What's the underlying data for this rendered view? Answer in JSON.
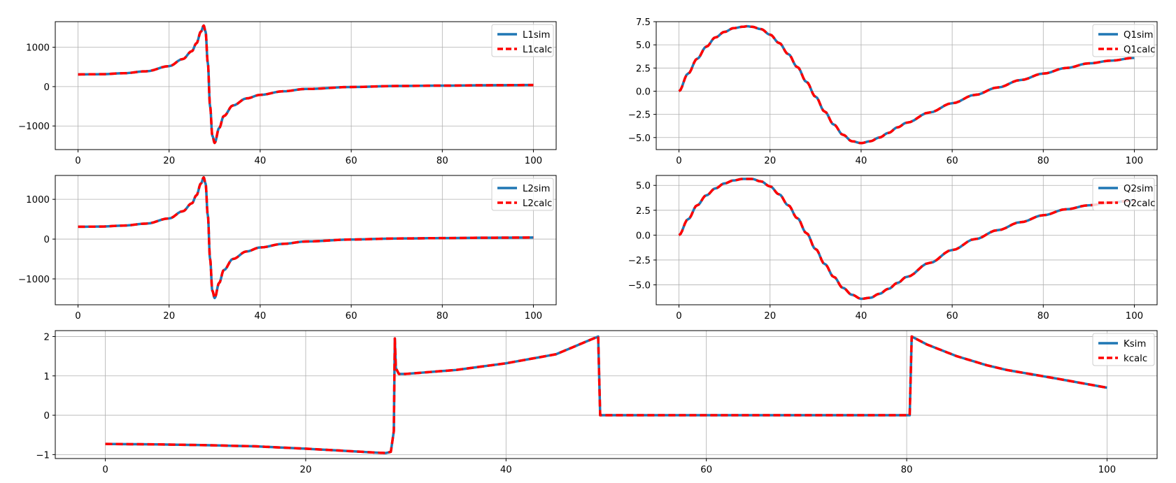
{
  "colors": {
    "sim": "#1f77b4",
    "calc": "#ff0000",
    "grid": "#b0b0b0",
    "axes": "#000000"
  },
  "chart_data": [
    {
      "id": "L1",
      "type": "line",
      "xlim": [
        -5,
        105
      ],
      "ylim": [
        -1600,
        1650
      ],
      "xticks": [
        0,
        20,
        40,
        60,
        80,
        100
      ],
      "yticks": [
        -1000,
        0,
        1000
      ],
      "grid": true,
      "legend_position": "top-right",
      "generator": "lorentz",
      "series": [
        {
          "name": "L1sim",
          "style": "solid"
        },
        {
          "name": "L1calc",
          "style": "dashed"
        }
      ],
      "x": [
        0,
        5,
        10,
        15,
        20,
        23,
        25,
        26,
        27,
        27.6,
        28,
        28.5,
        29,
        29.5,
        30,
        31,
        32,
        34,
        37,
        40,
        45,
        50,
        60,
        70,
        80,
        90,
        100
      ],
      "y": [
        310,
        315,
        340,
        390,
        520,
        700,
        900,
        1100,
        1400,
        1550,
        1400,
        600,
        -500,
        -1250,
        -1430,
        -1050,
        -750,
        -480,
        -300,
        -210,
        -120,
        -60,
        -10,
        15,
        25,
        35,
        40
      ]
    },
    {
      "id": "Q1",
      "type": "line",
      "xlim": [
        -5,
        105
      ],
      "ylim": [
        -6.3,
        7.5
      ],
      "xticks": [
        0,
        20,
        40,
        60,
        80,
        100
      ],
      "yticks": [
        -5.0,
        -2.5,
        0.0,
        2.5,
        5.0,
        7.5
      ],
      "ytick_format": 1,
      "grid": true,
      "legend_position": "top-right",
      "series": [
        {
          "name": "Q1sim",
          "style": "solid"
        },
        {
          "name": "Q1calc",
          "style": "dashed"
        }
      ],
      "x": [
        0,
        2,
        4,
        6,
        8,
        10,
        12,
        14,
        15,
        16,
        18,
        20,
        22,
        24,
        26,
        28,
        30,
        32,
        34,
        36,
        38,
        40,
        42,
        44,
        46,
        48,
        50,
        55,
        60,
        65,
        70,
        75,
        80,
        85,
        90,
        95,
        100
      ],
      "y": [
        0,
        1.9,
        3.5,
        4.8,
        5.8,
        6.4,
        6.8,
        6.95,
        7.0,
        6.95,
        6.7,
        6.1,
        5.2,
        4.0,
        2.6,
        1.0,
        -0.6,
        -2.2,
        -3.6,
        -4.7,
        -5.4,
        -5.6,
        -5.4,
        -5.0,
        -4.5,
        -3.9,
        -3.4,
        -2.3,
        -1.3,
        -0.4,
        0.4,
        1.2,
        1.9,
        2.5,
        3.0,
        3.3,
        3.6
      ]
    },
    {
      "id": "L2",
      "type": "line",
      "xlim": [
        -5,
        105
      ],
      "ylim": [
        -1650,
        1600
      ],
      "xticks": [
        0,
        20,
        40,
        60,
        80,
        100
      ],
      "yticks": [
        -1000,
        0,
        1000
      ],
      "grid": true,
      "legend_position": "top-right",
      "series": [
        {
          "name": "L2sim",
          "style": "solid"
        },
        {
          "name": "L2calc",
          "style": "dashed"
        }
      ],
      "x": [
        0,
        5,
        10,
        15,
        20,
        23,
        25,
        26,
        27,
        27.6,
        28,
        28.5,
        29,
        29.5,
        30,
        31,
        32,
        34,
        37,
        40,
        45,
        50,
        60,
        70,
        80,
        90,
        100
      ],
      "y": [
        310,
        315,
        340,
        390,
        520,
        700,
        900,
        1100,
        1400,
        1550,
        1400,
        600,
        -500,
        -1300,
        -1480,
        -1100,
        -780,
        -500,
        -310,
        -210,
        -120,
        -60,
        -10,
        15,
        25,
        35,
        40
      ]
    },
    {
      "id": "Q2",
      "type": "line",
      "xlim": [
        -5,
        105
      ],
      "ylim": [
        -7.0,
        6.0
      ],
      "xticks": [
        0,
        20,
        40,
        60,
        80,
        100
      ],
      "yticks": [
        -5.0,
        -2.5,
        0.0,
        2.5,
        5.0
      ],
      "ytick_format": 1,
      "grid": true,
      "legend_position": "top-right",
      "series": [
        {
          "name": "Q2sim",
          "style": "solid"
        },
        {
          "name": "Q2calc",
          "style": "dashed"
        }
      ],
      "x": [
        0,
        2,
        4,
        6,
        8,
        10,
        12,
        14,
        16,
        18,
        20,
        22,
        24,
        26,
        28,
        30,
        32,
        34,
        36,
        38,
        40,
        42,
        44,
        46,
        48,
        50,
        55,
        60,
        65,
        70,
        75,
        80,
        85,
        90,
        95,
        100
      ],
      "y": [
        0,
        1.6,
        3.0,
        4.0,
        4.7,
        5.2,
        5.5,
        5.65,
        5.65,
        5.4,
        4.9,
        4.1,
        3.0,
        1.7,
        0.2,
        -1.4,
        -2.9,
        -4.2,
        -5.3,
        -6.0,
        -6.4,
        -6.3,
        -5.9,
        -5.4,
        -4.8,
        -4.2,
        -2.8,
        -1.5,
        -0.4,
        0.5,
        1.3,
        2.0,
        2.6,
        3.0,
        3.3,
        3.5
      ]
    },
    {
      "id": "K",
      "type": "line",
      "xlim": [
        -5,
        105
      ],
      "ylim": [
        -1.1,
        2.15
      ],
      "xticks": [
        0,
        20,
        40,
        60,
        80,
        100
      ],
      "yticks": [
        -1,
        0,
        1,
        2
      ],
      "grid": true,
      "legend_position": "top-right",
      "series": [
        {
          "name": "Ksim",
          "style": "solid"
        },
        {
          "name": "kcalc",
          "style": "dashed"
        }
      ],
      "x": [
        0,
        5,
        10,
        15,
        20,
        25,
        27,
        28,
        28.5,
        28.8,
        28.85,
        28.9,
        29.0,
        29.3,
        30,
        35,
        40,
        45,
        49.2,
        49.3,
        49.4,
        50,
        60,
        70,
        80.3,
        80.4,
        80.5,
        82,
        85,
        88,
        90,
        95,
        100
      ],
      "y": [
        -0.73,
        -0.74,
        -0.76,
        -0.79,
        -0.85,
        -0.92,
        -0.95,
        -0.96,
        -0.93,
        -0.4,
        0.8,
        1.95,
        1.2,
        1.05,
        1.05,
        1.15,
        1.32,
        1.55,
        2.0,
        1.0,
        0,
        0,
        0,
        0,
        0,
        1.0,
        2.0,
        1.8,
        1.5,
        1.27,
        1.15,
        0.93,
        0.7
      ]
    }
  ]
}
